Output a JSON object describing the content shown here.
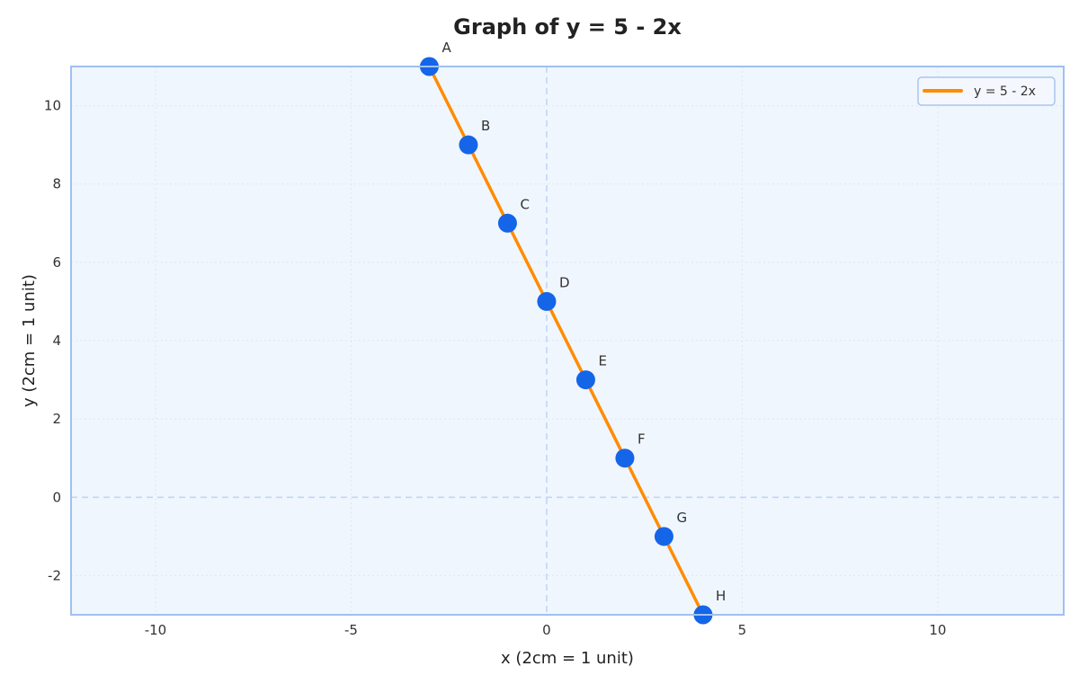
{
  "chart_data": {
    "type": "line",
    "title": "Graph of y = 5 - 2x",
    "xlabel": "x (2cm = 1 unit)",
    "ylabel": "y (2cm = 1 unit)",
    "xlim": [
      -12.16,
      13.22
    ],
    "ylim": [
      -3,
      11
    ],
    "xticks": [
      -10,
      -5,
      0,
      5,
      10
    ],
    "yticks": [
      -2,
      0,
      2,
      4,
      6,
      8,
      10
    ],
    "grid": true,
    "legend_position": "upper right",
    "series": [
      {
        "name": "y = 5 - 2x",
        "color": "#ff8c00",
        "x": [
          -3,
          -2,
          -1,
          0,
          1,
          2,
          3,
          4
        ],
        "y": [
          11,
          9,
          7,
          5,
          3,
          1,
          -1,
          -3
        ]
      }
    ],
    "points": [
      {
        "label": "A",
        "x": -3,
        "y": 11
      },
      {
        "label": "B",
        "x": -2,
        "y": 9
      },
      {
        "label": "C",
        "x": -1,
        "y": 7
      },
      {
        "label": "D",
        "x": 0,
        "y": 5
      },
      {
        "label": "E",
        "x": 1,
        "y": 3
      },
      {
        "label": "F",
        "x": 2,
        "y": 1
      },
      {
        "label": "G",
        "x": 3,
        "y": -1
      },
      {
        "label": "H",
        "x": 4,
        "y": -3
      }
    ],
    "colors": {
      "line": "#ff8c00",
      "marker": "#1565e8",
      "plot_bg": "#f0f6fe",
      "frame": "#a0c0f0",
      "zero_lines": "#c0d6f8",
      "grid": "#dde6f2"
    }
  }
}
